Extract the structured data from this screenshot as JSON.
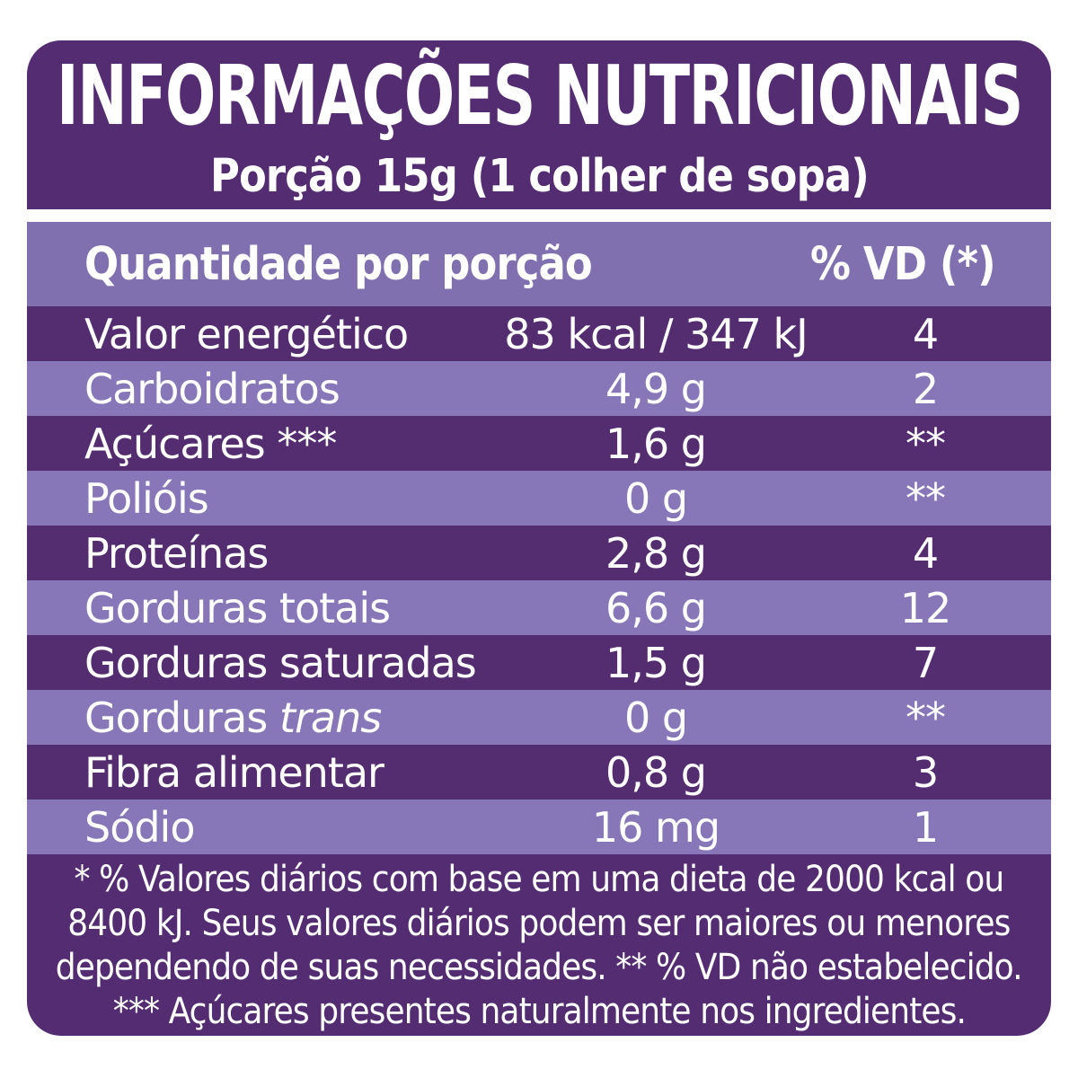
{
  "title": "INFORMAÇÕES NUTRICIONAIS",
  "subtitle": "Porção 15g (1 colher de sopa)",
  "table": {
    "header": {
      "quantity_col": "Quantidade por porção",
      "vd_col": "% VD (*)"
    },
    "rows": [
      {
        "label": "Valor energético",
        "value": "83 kcal / 347 kJ",
        "vd": "4",
        "shade": "dark"
      },
      {
        "label": "Carboidratos",
        "value": "4,9 g",
        "vd": "2",
        "shade": "light"
      },
      {
        "label": "Açúcares ***",
        "value": "1,6 g",
        "vd": "**",
        "shade": "dark"
      },
      {
        "label": "Polióis",
        "value": "0 g",
        "vd": "**",
        "shade": "light"
      },
      {
        "label": "Proteínas",
        "value": "2,8 g",
        "vd": "4",
        "shade": "dark"
      },
      {
        "label": "Gorduras totais",
        "value": "6,6 g",
        "vd": "12",
        "shade": "light"
      },
      {
        "label": "Gorduras saturadas",
        "value": "1,5 g",
        "vd": "7",
        "shade": "dark"
      },
      {
        "label": "Gorduras ",
        "label_italic": "trans",
        "value": "0 g",
        "vd": "**",
        "shade": "light"
      },
      {
        "label": "Fibra alimentar",
        "value": "0,8 g",
        "vd": "3",
        "shade": "dark"
      },
      {
        "label": "Sódio",
        "value": "16 mg",
        "vd": "1",
        "shade": "light"
      }
    ]
  },
  "footnotes": {
    "lines": [
      "* % Valores diários com base em uma dieta de 2000 kcal ou",
      "8400 kJ. Seus valores diários podem ser maiores ou menores",
      "dependendo de suas necessidades. ** % VD não estabelecido.",
      "*** Açúcares presentes naturalmente nos ingredientes."
    ]
  },
  "colors": {
    "page_bg": "#ffffff",
    "header_bg": "#532c72",
    "band_bg": "#8070b0",
    "row_dark": "#542d70",
    "row_light": "#8877b8",
    "text": "#ffffff"
  }
}
